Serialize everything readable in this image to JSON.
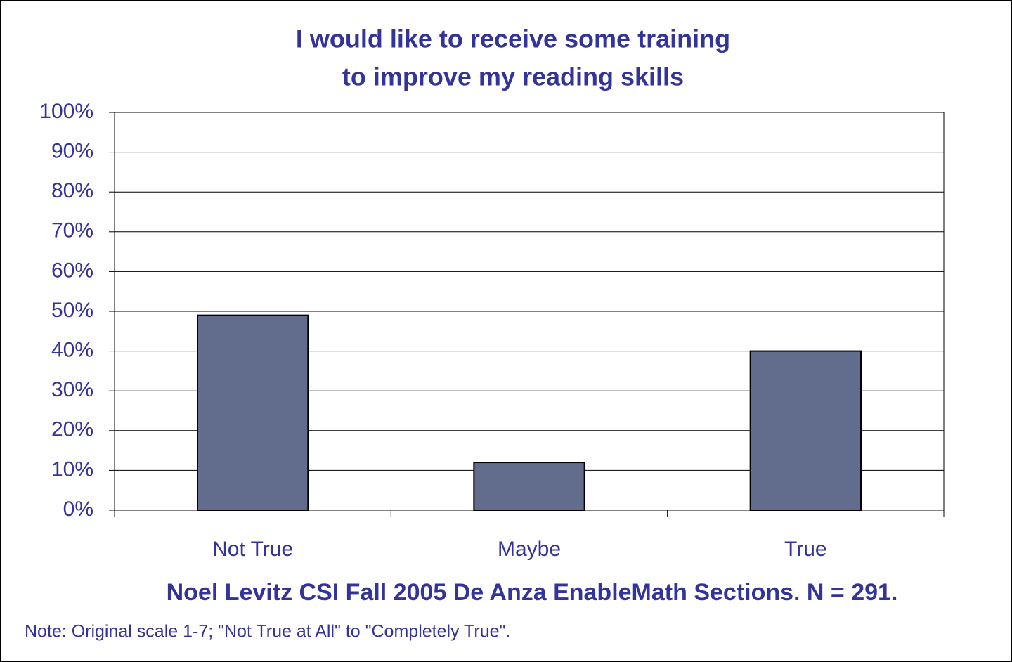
{
  "chart_data": {
    "type": "bar",
    "title": [
      "I would like to receive some training",
      "to improve my reading skills"
    ],
    "subtitle": "Noel Levitz CSI Fall 2005 De Anza EnableMath Sections.  N = 291.",
    "note": "Note:  Original scale 1-7; \"Not True at All\" to \"Completely True\".",
    "categories": [
      "Not True",
      "Maybe",
      "True"
    ],
    "values": [
      49,
      12,
      40
    ],
    "color": "#626d8e",
    "ylim": [
      0,
      100
    ],
    "yticks": [
      {
        "value": 0,
        "label": "0%"
      },
      {
        "value": 10,
        "label": "10%"
      },
      {
        "value": 20,
        "label": "20%"
      },
      {
        "value": 30,
        "label": "30%"
      },
      {
        "value": 40,
        "label": "40%"
      },
      {
        "value": 50,
        "label": "50%"
      },
      {
        "value": 60,
        "label": "60%"
      },
      {
        "value": 70,
        "label": "70%"
      },
      {
        "value": 80,
        "label": "80%"
      },
      {
        "value": 90,
        "label": "90%"
      },
      {
        "value": 100,
        "label": "100%"
      }
    ],
    "grid": true
  }
}
